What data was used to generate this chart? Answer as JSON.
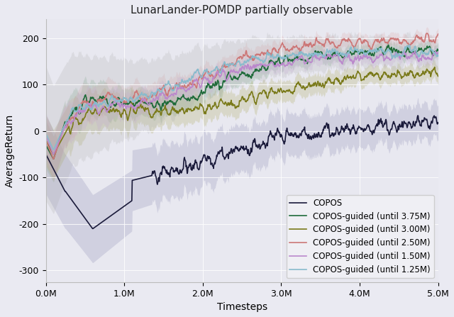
{
  "title": "LunarLander-POMDP partially observable",
  "xlabel": "Timesteps",
  "ylabel": "AverageReturn",
  "xlim": [
    0,
    5000000
  ],
  "ylim": [
    -325,
    240
  ],
  "xticks": [
    0,
    1000000,
    2000000,
    3000000,
    4000000,
    5000000
  ],
  "xticklabels": [
    "0.0M",
    "1.0M",
    "2.0M",
    "3.0M",
    "4.0M",
    "5.0M"
  ],
  "yticks": [
    -300,
    -200,
    -100,
    0,
    100,
    200
  ],
  "background_color": "#e8e8f0",
  "fig_bg": "#eaeaf2",
  "lines": [
    {
      "label": "COPOS",
      "color": "#1a1a3a",
      "shade_color": "#9999bb",
      "shade_alpha": 0.3,
      "style": "copos"
    },
    {
      "label": "COPOS-guided (until 3.75M)",
      "color": "#1f6b3a",
      "shade_color": "#7aaa88",
      "shade_alpha": 0.25,
      "style": "guided_375"
    },
    {
      "label": "COPOS-guided (until 3.00M)",
      "color": "#7a7a1a",
      "shade_color": "#aaa855",
      "shade_alpha": 0.25,
      "style": "guided_300"
    },
    {
      "label": "COPOS-guided (until 2.50M)",
      "color": "#cc7777",
      "shade_color": "#ddaaaa",
      "shade_alpha": 0.25,
      "style": "guided_250"
    },
    {
      "label": "COPOS-guided (until 1.50M)",
      "color": "#bb88cc",
      "shade_color": "#ccaadd",
      "shade_alpha": 0.25,
      "style": "guided_150"
    },
    {
      "label": "COPOS-guided (until 1.25M)",
      "color": "#88bbcc",
      "shade_color": "#aaaaaa",
      "shade_alpha": 0.22,
      "style": "guided_125"
    }
  ]
}
